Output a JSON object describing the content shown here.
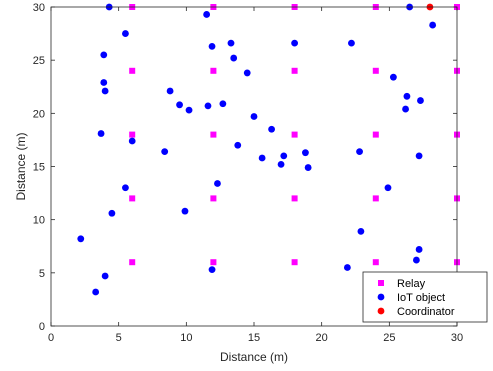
{
  "chart_data": {
    "type": "scatter",
    "title": "",
    "xlabel": "Distance (m)",
    "ylabel": "Distance (m)",
    "xlim": [
      0,
      30
    ],
    "ylim": [
      0,
      30
    ],
    "xticks": [
      "0",
      "5",
      "10",
      "15",
      "20",
      "25",
      "30"
    ],
    "yticks": [
      "0",
      "5",
      "10",
      "15",
      "20",
      "25",
      "30"
    ],
    "grid": false,
    "legend_position": "bottom-right",
    "series": [
      {
        "name": "Relay",
        "marker": "square",
        "color": "#ff00ff",
        "points": [
          [
            6,
            30
          ],
          [
            12,
            30
          ],
          [
            18,
            30
          ],
          [
            24,
            30
          ],
          [
            30,
            30
          ],
          [
            6,
            24
          ],
          [
            12,
            24
          ],
          [
            18,
            24
          ],
          [
            24,
            24
          ],
          [
            30,
            24
          ],
          [
            6,
            18
          ],
          [
            12,
            18
          ],
          [
            18,
            18
          ],
          [
            24,
            18
          ],
          [
            30,
            18
          ],
          [
            6,
            12
          ],
          [
            12,
            12
          ],
          [
            18,
            12
          ],
          [
            24,
            12
          ],
          [
            30,
            12
          ],
          [
            6,
            6
          ],
          [
            12,
            6
          ],
          [
            18,
            6
          ],
          [
            24,
            6
          ],
          [
            30,
            6
          ]
        ]
      },
      {
        "name": "IoT object",
        "marker": "circle",
        "color": "#0000ff",
        "points": [
          [
            4.3,
            30.0
          ],
          [
            11.5,
            29.3
          ],
          [
            26.5,
            30.0
          ],
          [
            28.2,
            28.3
          ],
          [
            5.5,
            27.5
          ],
          [
            3.9,
            25.5
          ],
          [
            11.9,
            26.3
          ],
          [
            13.3,
            26.6
          ],
          [
            18.0,
            26.6
          ],
          [
            22.2,
            26.6
          ],
          [
            13.5,
            25.2
          ],
          [
            14.5,
            23.8
          ],
          [
            25.3,
            23.4
          ],
          [
            3.9,
            22.9
          ],
          [
            4.0,
            22.1
          ],
          [
            8.8,
            22.1
          ],
          [
            9.5,
            20.8
          ],
          [
            10.2,
            20.3
          ],
          [
            11.6,
            20.7
          ],
          [
            12.7,
            20.9
          ],
          [
            15.0,
            19.7
          ],
          [
            26.3,
            21.6
          ],
          [
            27.3,
            21.2
          ],
          [
            26.2,
            20.4
          ],
          [
            3.7,
            18.1
          ],
          [
            16.3,
            18.5
          ],
          [
            6.0,
            17.4
          ],
          [
            13.8,
            17.0
          ],
          [
            8.4,
            16.4
          ],
          [
            15.6,
            15.8
          ],
          [
            17.2,
            16.0
          ],
          [
            18.8,
            16.3
          ],
          [
            22.8,
            16.4
          ],
          [
            27.2,
            16.0
          ],
          [
            17.0,
            15.2
          ],
          [
            19.0,
            14.9
          ],
          [
            12.3,
            13.4
          ],
          [
            5.5,
            13.0
          ],
          [
            24.9,
            13.0
          ],
          [
            4.5,
            10.6
          ],
          [
            9.9,
            10.8
          ],
          [
            2.2,
            8.2
          ],
          [
            22.9,
            8.9
          ],
          [
            27.2,
            7.2
          ],
          [
            27.0,
            6.2
          ],
          [
            11.9,
            5.3
          ],
          [
            21.9,
            5.5
          ],
          [
            4.0,
            4.7
          ],
          [
            23.8,
            4.1
          ],
          [
            3.3,
            3.2
          ]
        ]
      },
      {
        "name": "Coordinator",
        "marker": "circle",
        "color": "#ff0000",
        "points": [
          [
            28.0,
            30.0
          ]
        ]
      }
    ]
  }
}
